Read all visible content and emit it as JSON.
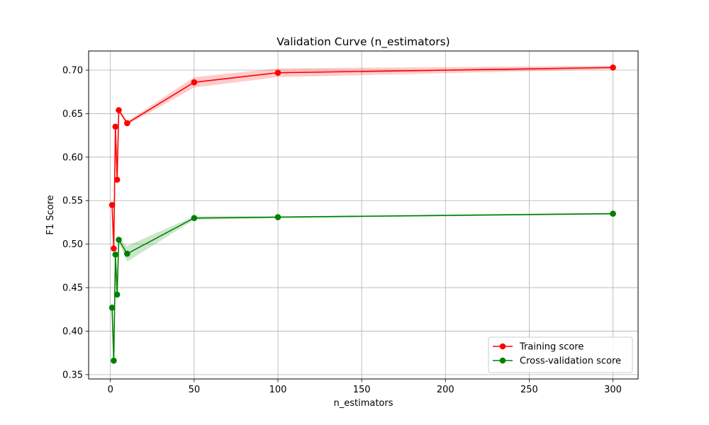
{
  "chart_data": {
    "type": "line",
    "title": "Validation Curve (n_estimators)",
    "xlabel": "n_estimators",
    "ylabel": "F1 Score",
    "xlim": [
      -13,
      315
    ],
    "ylim": [
      0.345,
      0.722
    ],
    "x_ticks": [
      0,
      50,
      100,
      150,
      200,
      250,
      300
    ],
    "y_ticks": [
      0.35,
      0.4,
      0.45,
      0.5,
      0.55,
      0.6,
      0.65,
      0.7
    ],
    "y_tick_labels": [
      "0.35",
      "0.40",
      "0.45",
      "0.50",
      "0.55",
      "0.60",
      "0.65",
      "0.70"
    ],
    "grid": true,
    "legend_position": "lower right",
    "x": [
      1,
      2,
      3,
      4,
      5,
      10,
      50,
      100,
      300
    ],
    "series": [
      {
        "name": "Training score",
        "color": "#ff0000",
        "band_color": "#ff0000",
        "values": [
          0.545,
          0.495,
          0.635,
          0.574,
          0.654,
          0.639,
          0.686,
          0.697,
          0.703
        ],
        "band_lower": [
          0.545,
          0.495,
          0.634,
          0.573,
          0.652,
          0.637,
          0.68,
          0.692,
          0.701
        ],
        "band_upper": [
          0.546,
          0.496,
          0.636,
          0.575,
          0.656,
          0.641,
          0.692,
          0.702,
          0.705
        ]
      },
      {
        "name": "Cross-validation score",
        "color": "#008000",
        "band_color": "#008000",
        "values": [
          0.427,
          0.366,
          0.488,
          0.442,
          0.505,
          0.489,
          0.53,
          0.531,
          0.535
        ],
        "band_lower": [
          0.426,
          0.365,
          0.487,
          0.441,
          0.503,
          0.48,
          0.528,
          0.53,
          0.534
        ],
        "band_upper": [
          0.428,
          0.367,
          0.489,
          0.443,
          0.507,
          0.498,
          0.532,
          0.532,
          0.536
        ]
      }
    ]
  }
}
